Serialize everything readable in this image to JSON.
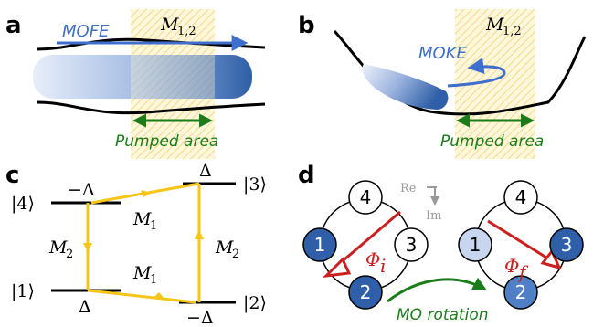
{
  "panels": {
    "a": {
      "label": "a",
      "effect_label": "MOFE",
      "magnet_label": "M",
      "magnet_sub": "1,2",
      "pumped_label": "Pumped area"
    },
    "b": {
      "label": "b",
      "effect_label": "MOKE",
      "magnet_label": "M",
      "magnet_sub": "1,2",
      "pumped_label": "Pumped area"
    },
    "c": {
      "label": "c",
      "states": {
        "s1": "|1⟩",
        "s2": "|2⟩",
        "s3": "|3⟩",
        "s4": "|4⟩"
      },
      "energies": {
        "delta": "Δ",
        "neg_delta": "−Δ"
      },
      "couplings": {
        "m1": "M",
        "m1_sub": "1",
        "m2": "M",
        "m2_sub": "2"
      }
    },
    "d": {
      "label": "d",
      "nodes": [
        "1",
        "2",
        "3",
        "4"
      ],
      "axes": {
        "re": "Re",
        "im": "Im"
      },
      "phi_initial": "Φ",
      "phi_initial_sub": "i",
      "phi_final": "Φ",
      "phi_final_sub": "f",
      "rotation_label": "MO rotation"
    }
  },
  "colors": {
    "yellow": "#f5c518",
    "blue_text": "#3f6fcc",
    "dark_blue": "#2f5fa8",
    "light_blue": "#c7d5ee",
    "green": "#1a7d1a",
    "red": "#cc1f1f",
    "gray": "#999999"
  }
}
